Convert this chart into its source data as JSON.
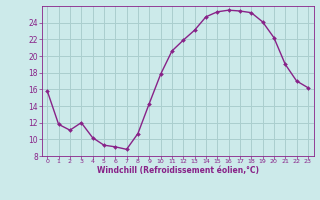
{
  "x": [
    0,
    1,
    2,
    3,
    4,
    5,
    6,
    7,
    8,
    9,
    10,
    11,
    12,
    13,
    14,
    15,
    16,
    17,
    18,
    19,
    20,
    21,
    22,
    23
  ],
  "y": [
    15.8,
    11.8,
    11.1,
    12.0,
    10.2,
    9.3,
    9.1,
    8.8,
    10.7,
    14.3,
    17.8,
    20.6,
    21.9,
    23.1,
    24.7,
    25.3,
    25.5,
    25.4,
    25.2,
    24.1,
    22.2,
    19.0,
    17.0,
    16.2
  ],
  "line_color": "#882288",
  "marker": "D",
  "marker_size": 2.0,
  "bg_color": "#cceaea",
  "grid_color": "#aacece",
  "xlabel": "Windchill (Refroidissement éolien,°C)",
  "xlim": [
    -0.5,
    23.5
  ],
  "ylim": [
    8,
    26
  ],
  "yticks": [
    8,
    10,
    12,
    14,
    16,
    18,
    20,
    22,
    24
  ],
  "xticks": [
    0,
    1,
    2,
    3,
    4,
    5,
    6,
    7,
    8,
    9,
    10,
    11,
    12,
    13,
    14,
    15,
    16,
    17,
    18,
    19,
    20,
    21,
    22,
    23
  ],
  "tick_color": "#882288",
  "label_color": "#882288"
}
